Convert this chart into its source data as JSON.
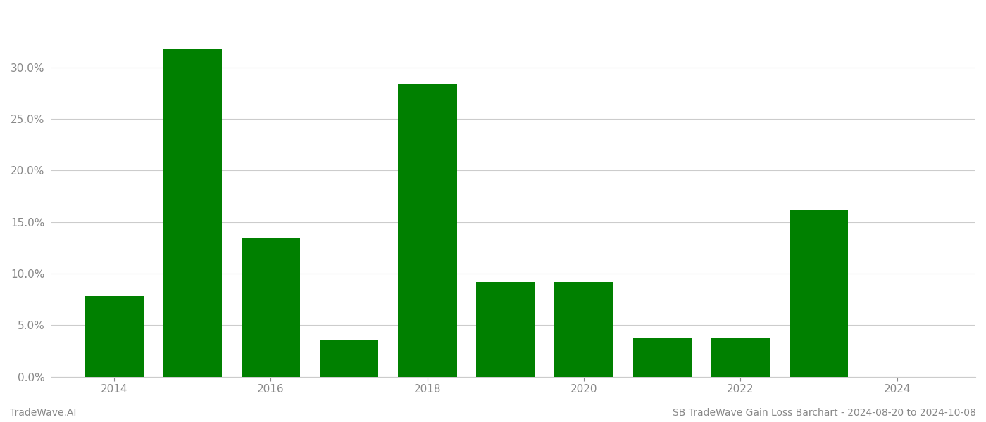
{
  "years": [
    2014,
    2015,
    2016,
    2017,
    2018,
    2019,
    2020,
    2021,
    2022,
    2023,
    2024
  ],
  "values": [
    0.078,
    0.318,
    0.135,
    0.036,
    0.284,
    0.092,
    0.092,
    0.037,
    0.038,
    0.162,
    0.0
  ],
  "bar_color": "#008000",
  "background_color": "#ffffff",
  "grid_color": "#cccccc",
  "ylabel_color": "#888888",
  "xlabel_color": "#888888",
  "ylim": [
    0.0,
    0.355
  ],
  "yticks": [
    0.0,
    0.05,
    0.1,
    0.15,
    0.2,
    0.25,
    0.3
  ],
  "xtick_positions": [
    2014,
    2016,
    2018,
    2020,
    2022,
    2024
  ],
  "xtick_labels": [
    "2014",
    "2016",
    "2018",
    "2020",
    "2022",
    "2024"
  ],
  "footer_left": "TradeWave.AI",
  "footer_right": "SB TradeWave Gain Loss Barchart - 2024-08-20 to 2024-10-08",
  "footer_color": "#888888",
  "footer_fontsize": 10,
  "tick_fontsize": 11,
  "bar_width": 0.75,
  "xlim_left": 2013.2,
  "xlim_right": 2025.0
}
